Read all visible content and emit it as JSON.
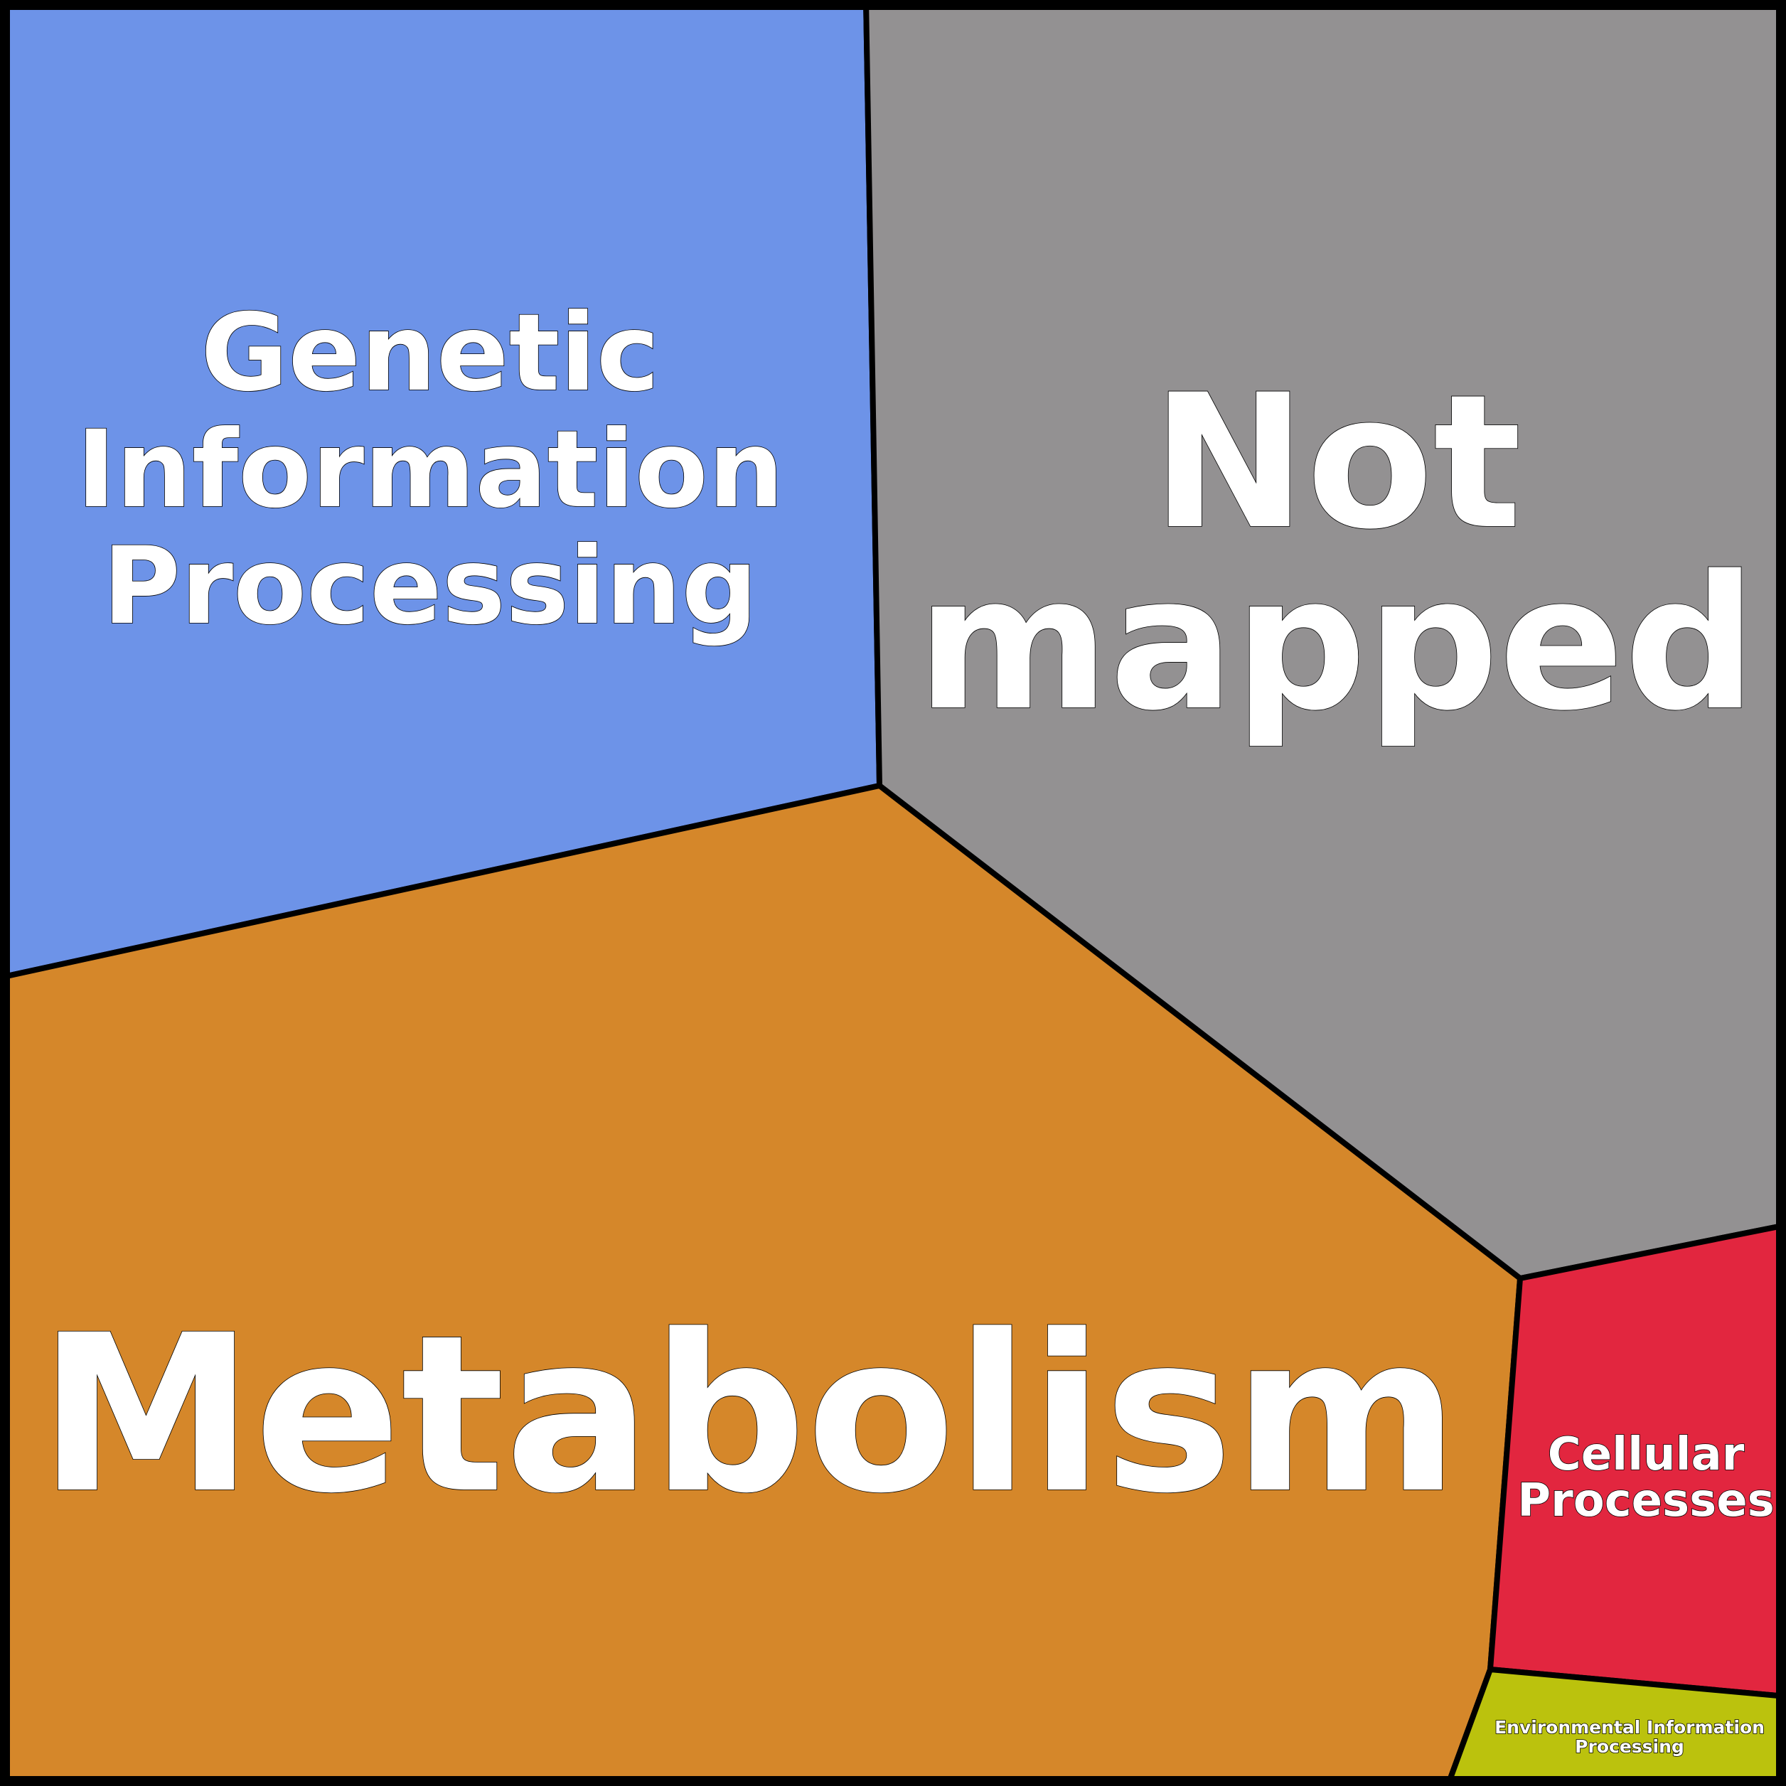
{
  "chart_data": {
    "type": "voronoi-treemap",
    "cells": [
      {
        "id": "genetic",
        "lines": [
          "Genetic",
          "Information",
          "Processing"
        ],
        "color": "#6d93e8"
      },
      {
        "id": "not-mapped",
        "lines": [
          "Not",
          "mapped"
        ],
        "color": "#939192"
      },
      {
        "id": "metabolism",
        "lines": [
          "Metabolism"
        ],
        "color": "#d5872a"
      },
      {
        "id": "cellular",
        "lines": [
          "Cellular",
          "Processes"
        ],
        "color": "#e2263f"
      },
      {
        "id": "environmental",
        "lines": [
          "Environmental Information",
          "Processing"
        ],
        "color": "#bbc20d"
      }
    ]
  }
}
